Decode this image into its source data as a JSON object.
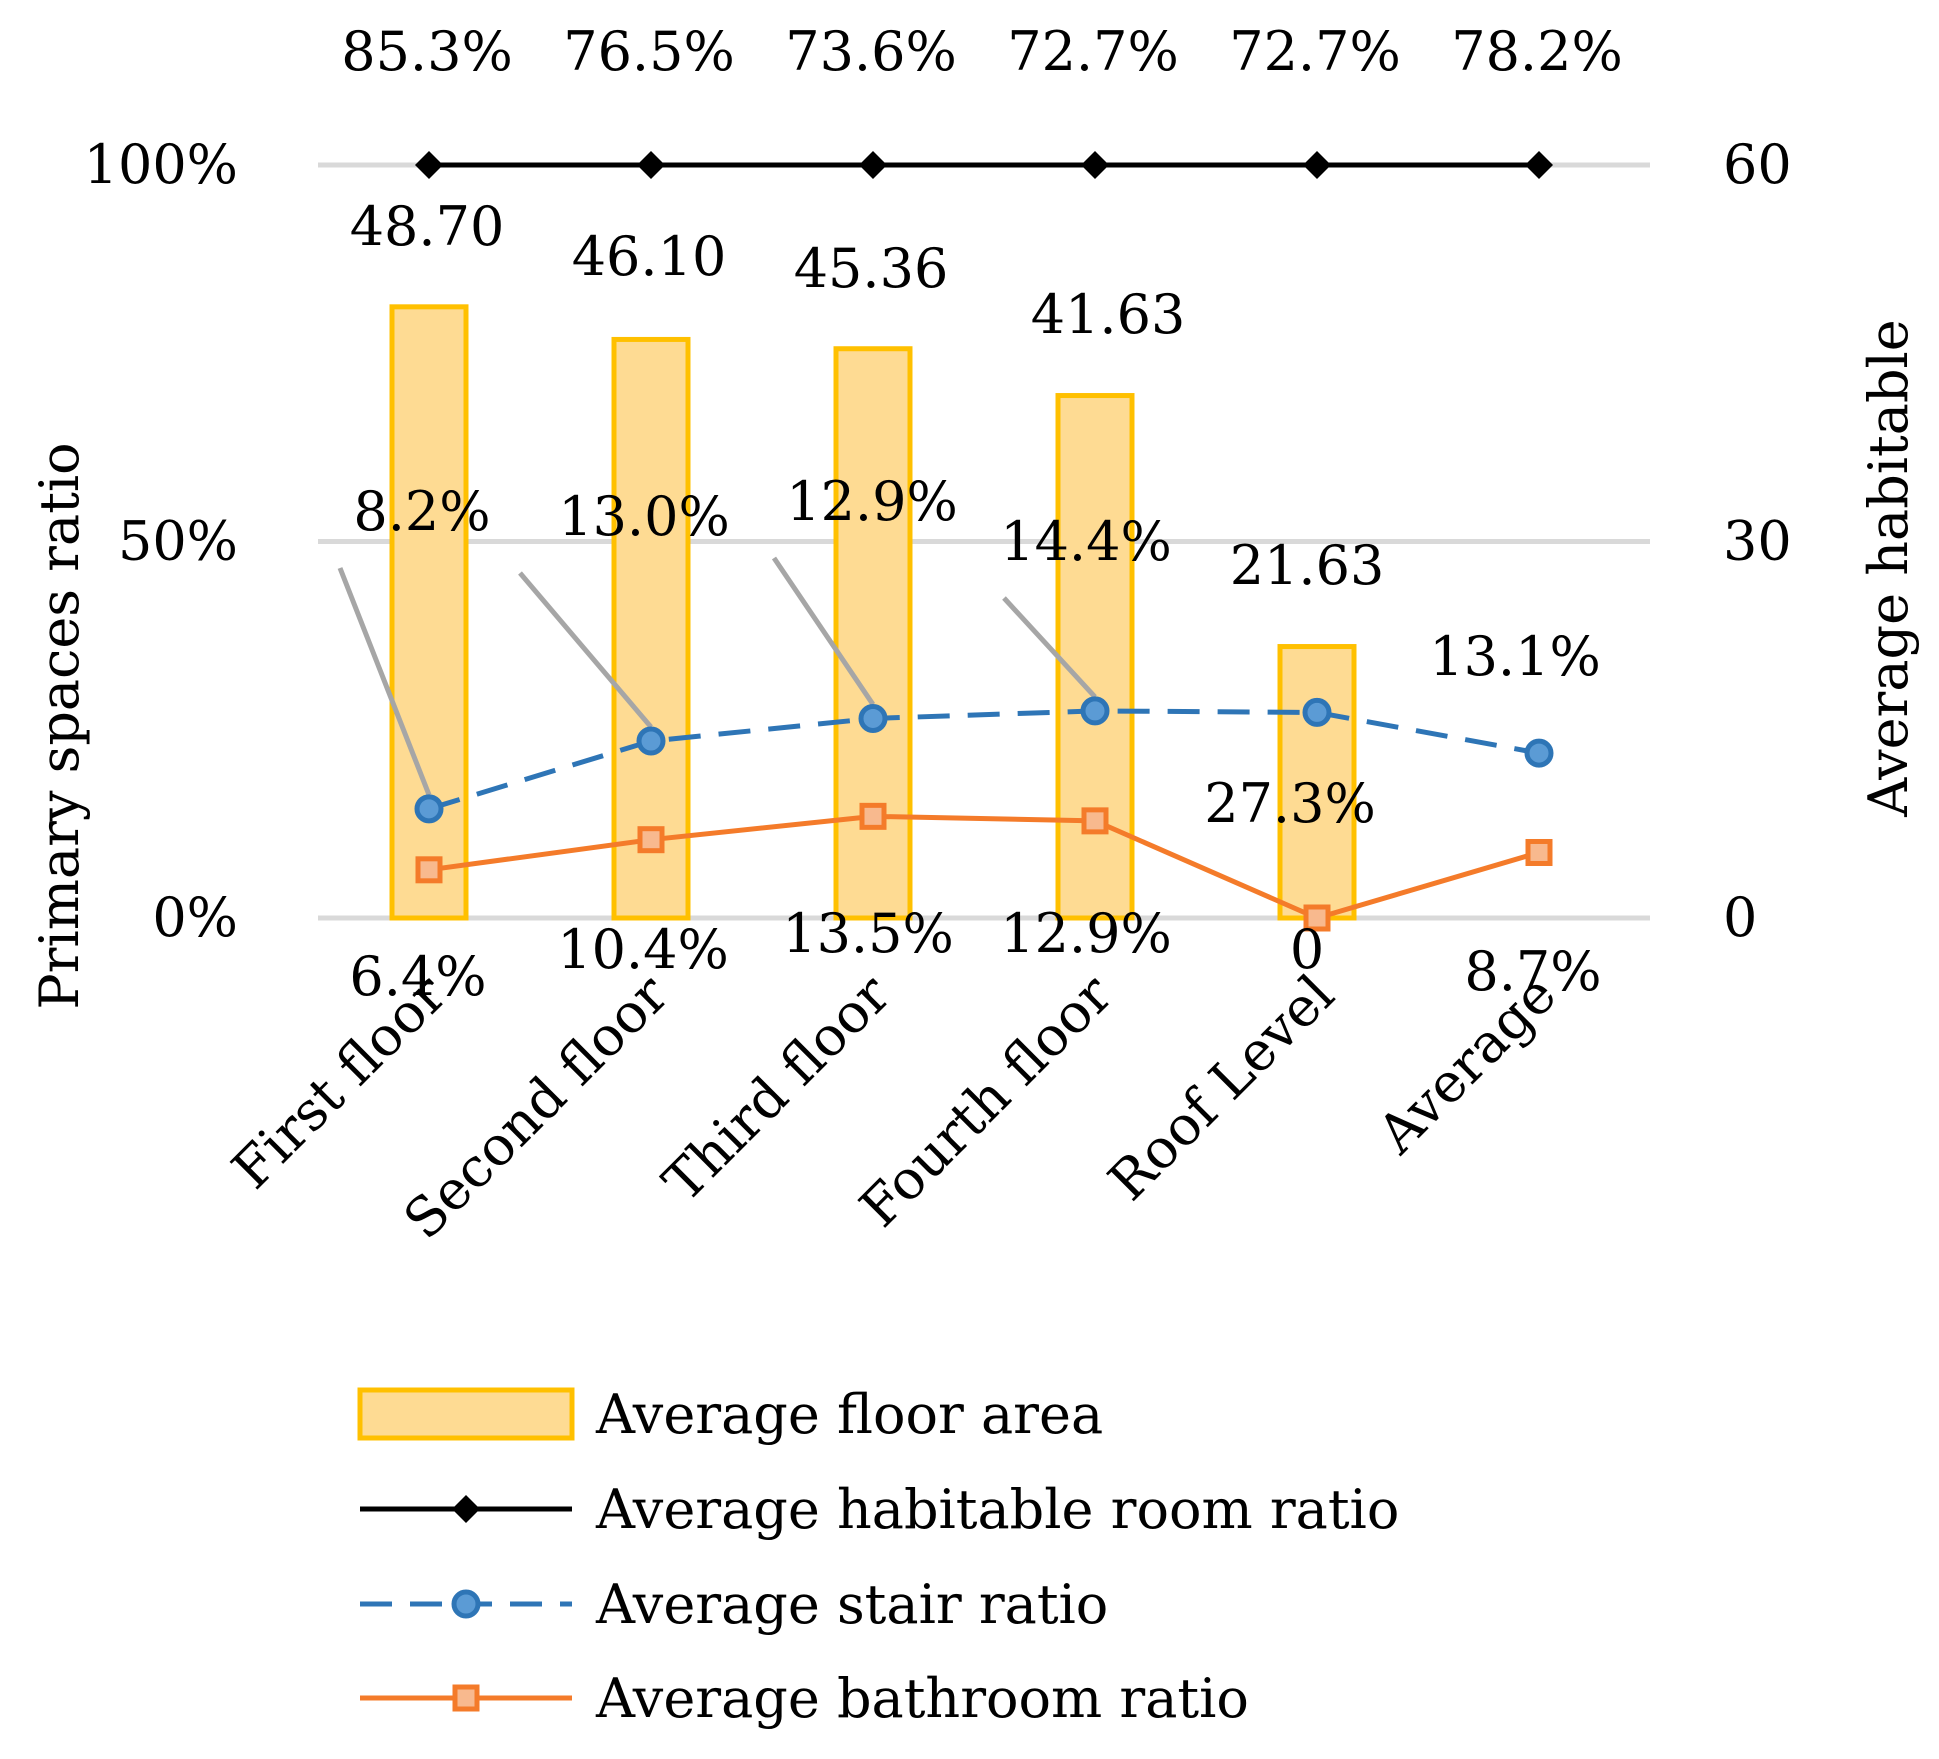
{
  "chart_data": {
    "type": "bar",
    "categories": [
      "First floor",
      "Second floor",
      "Third floor",
      "Fourth floor",
      "Roof Level",
      "Average"
    ],
    "y_left": {
      "label": "Primary spaces ratio",
      "ticks": [
        "0%",
        "50%",
        "100%"
      ],
      "range": [
        0,
        100
      ]
    },
    "y_right": {
      "label": "Average habitable",
      "ticks": [
        "0",
        "30",
        "60"
      ],
      "range": [
        0,
        60
      ]
    },
    "grid": true,
    "legend_position": "bottom",
    "series": [
      {
        "name": "Average floor area",
        "kind": "bar",
        "axis": "right",
        "values": [
          48.7,
          46.1,
          45.36,
          41.63,
          21.63,
          null
        ],
        "labels": [
          "48.70",
          "46.10",
          "45.36",
          "41.63",
          "21.63",
          ""
        ],
        "color": "#ffc000",
        "fill": "#fedb93"
      },
      {
        "name": "Average habitable room ratio",
        "kind": "line",
        "axis": "left",
        "plot_values": [
          100,
          100,
          100,
          100,
          100,
          100
        ],
        "values": [
          85.3,
          76.5,
          73.6,
          72.7,
          72.7,
          78.2
        ],
        "labels": [
          "85.3%",
          "76.5%",
          "73.6%",
          "72.7%",
          "72.7%",
          "78.2%"
        ],
        "color": "#000000",
        "marker": "diamond"
      },
      {
        "name": "Average stair ratio",
        "kind": "line",
        "axis": "left",
        "dashed": true,
        "values": [
          8.2,
          13.0,
          12.9,
          14.4,
          27.3,
          13.1
        ],
        "plot_values": [
          14.5,
          23.5,
          26.5,
          27.5,
          27.3,
          21.9
        ],
        "labels": [
          "8.2%",
          "13.0%",
          "12.9%",
          "14.4%",
          "27.3%",
          "13.1%"
        ],
        "color": "#2e75b6",
        "marker": "circle"
      },
      {
        "name": "Average bathroom ratio",
        "kind": "line",
        "axis": "left",
        "values": [
          6.4,
          10.4,
          13.5,
          12.9,
          0,
          8.7
        ],
        "plot_values": [
          6.4,
          10.4,
          13.5,
          12.9,
          0,
          8.7
        ],
        "labels": [
          "6.4%",
          "10.4%",
          "13.5%",
          "12.9%",
          "0",
          "8.7%"
        ],
        "color": "#f47b2a",
        "marker": "square"
      }
    ]
  }
}
